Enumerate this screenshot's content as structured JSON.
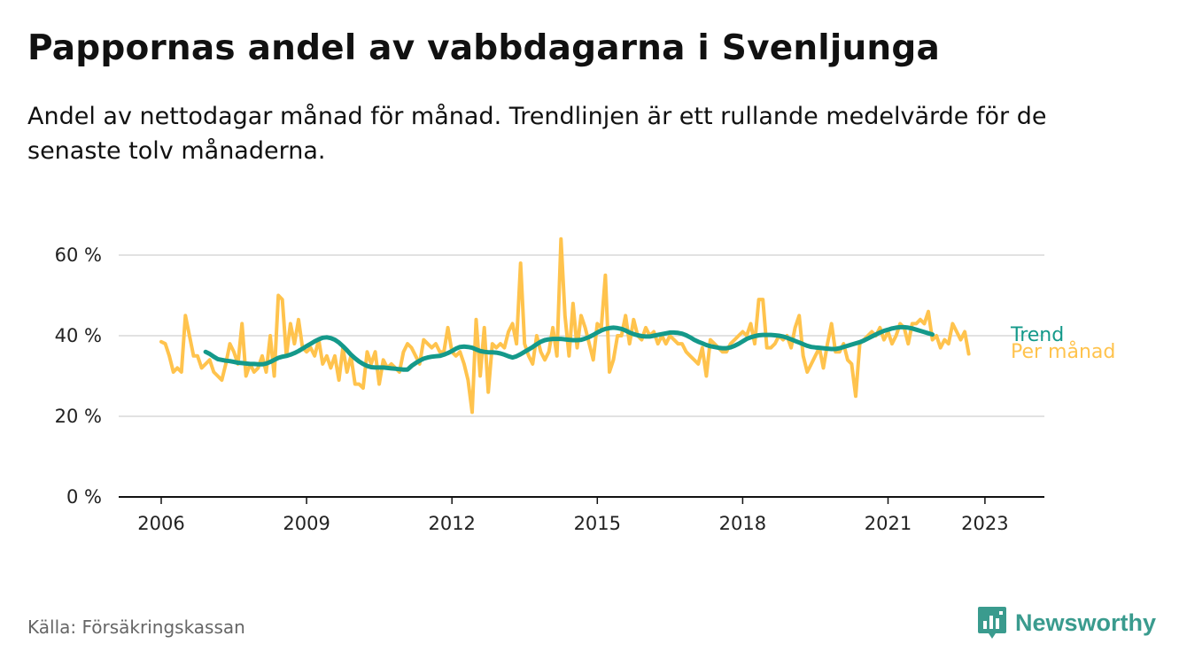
{
  "title": "Pappornas andel av vabbdagarna i Svenljunga",
  "subtitle": "Andel av nettodagar månad för månad. Trendlinjen är ett rullande medelvärde för de senaste tolv månaderna.",
  "source": "Källa: Försäkringskassan",
  "brand": {
    "name": "Newsworthy",
    "icon": "newsworthy-logo-icon"
  },
  "colors": {
    "monthly": "#ffc34d",
    "trend": "#14998a",
    "grid": "#d9d9d9",
    "axis": "#111111",
    "brand": "#3a9b8e"
  },
  "chart_data": {
    "type": "line",
    "x_unit": "decimal year",
    "xlim": [
      2006.0,
      2023.5
    ],
    "ylim": [
      0,
      60
    ],
    "y_ticks": [
      0,
      20,
      40,
      60
    ],
    "y_tick_labels": [
      "0 %",
      "20 %",
      "40 %",
      "60 %"
    ],
    "x_ticks": [
      2006,
      2009,
      2012,
      2015,
      2018,
      2021,
      2023
    ],
    "x_tick_labels": [
      "2006",
      "2009",
      "2012",
      "2015",
      "2018",
      "2021",
      "2023"
    ],
    "grid": true,
    "series": [
      {
        "name": "Per månad",
        "start": 2006.0,
        "step": 0.08333,
        "values": [
          38.5,
          38,
          35,
          31,
          32,
          31,
          45,
          40,
          35,
          35,
          32,
          33,
          34,
          31,
          30,
          29,
          33,
          38,
          36,
          33,
          43,
          30,
          33,
          31,
          32,
          35,
          31,
          40,
          30,
          50,
          49,
          35,
          43,
          38,
          44,
          37,
          36,
          37,
          35,
          39,
          33,
          35,
          32,
          35,
          29,
          37,
          31,
          35,
          28,
          28,
          27,
          36,
          33,
          36,
          28,
          34,
          32,
          33,
          32,
          31,
          36,
          38,
          37,
          35,
          33,
          39,
          38,
          37,
          38,
          36,
          36,
          42,
          36,
          35,
          36,
          33,
          29,
          21,
          44,
          30,
          42,
          26,
          38,
          37,
          38,
          37,
          41,
          43,
          38,
          58,
          38,
          35,
          33,
          40,
          36,
          34,
          36,
          42,
          35,
          64,
          45,
          35,
          48,
          37,
          45,
          42,
          38,
          34,
          43,
          42,
          55,
          31,
          34,
          40,
          40,
          45,
          38,
          44,
          40,
          39,
          42,
          40,
          41,
          38,
          40,
          38,
          40,
          39,
          38,
          38,
          36,
          35,
          34,
          33,
          37,
          30,
          39,
          38,
          37,
          36,
          36,
          38,
          39,
          40,
          41,
          40,
          43,
          38,
          49,
          49,
          37,
          37,
          38,
          40,
          39,
          40,
          37,
          42,
          45,
          35,
          31,
          33,
          35,
          37,
          32,
          38,
          43,
          36,
          36,
          38,
          34,
          33,
          25,
          38,
          39,
          40,
          41,
          40,
          42,
          39,
          41,
          38,
          40,
          43,
          42,
          38,
          43,
          43,
          44,
          43,
          46,
          39,
          40,
          37,
          39,
          38,
          43,
          41,
          39,
          41,
          35.5
        ]
      },
      {
        "name": "Trend",
        "start": 2006.9167,
        "step": 0.08333,
        "values": [
          36,
          35.5,
          34.8,
          34.2,
          34,
          33.8,
          33.7,
          33.5,
          33.3,
          33.2,
          33.1,
          33,
          33,
          32.9,
          32.9,
          33.1,
          33.5,
          34,
          34.5,
          34.8,
          35,
          35.3,
          35.7,
          36.2,
          36.8,
          37.4,
          38,
          38.6,
          39.1,
          39.5,
          39.6,
          39.4,
          39,
          38.3,
          37.4,
          36.4,
          35.3,
          34.4,
          33.6,
          33,
          32.5,
          32.2,
          32.1,
          32.1,
          32.1,
          32,
          31.9,
          31.8,
          31.7,
          31.6,
          31.6,
          32.5,
          33.2,
          33.8,
          34.3,
          34.6,
          34.8,
          34.9,
          35,
          35.3,
          35.7,
          36.2,
          36.8,
          37.2,
          37.3,
          37.2,
          37,
          36.6,
          36.2,
          36,
          35.9,
          35.9,
          35.8,
          35.6,
          35.3,
          34.9,
          34.6,
          34.9,
          35.4,
          36,
          36.6,
          37.2,
          37.9,
          38.5,
          38.9,
          39.1,
          39.2,
          39.2,
          39.2,
          39.1,
          39,
          38.9,
          38.9,
          39,
          39.3,
          39.7,
          40.2,
          40.8,
          41.3,
          41.7,
          41.9,
          42,
          41.9,
          41.7,
          41.3,
          40.8,
          40.4,
          40.1,
          39.9,
          39.8,
          39.8,
          40,
          40.2,
          40.4,
          40.6,
          40.8,
          40.8,
          40.7,
          40.5,
          40.1,
          39.6,
          39,
          38.5,
          38.1,
          37.7,
          37.4,
          37.2,
          37,
          36.9,
          36.9,
          37.1,
          37.5,
          38,
          38.6,
          39.2,
          39.6,
          39.9,
          40.1,
          40.2,
          40.2,
          40.2,
          40.1,
          40,
          39.8,
          39.5,
          39.1,
          38.7,
          38.3,
          37.9,
          37.5,
          37.2,
          37.1,
          37,
          36.9,
          36.8,
          36.7,
          36.7,
          36.9,
          37.2,
          37.5,
          37.8,
          38.1,
          38.4,
          38.8,
          39.3,
          39.8,
          40.3,
          40.8,
          41.2,
          41.5,
          41.8,
          42,
          42.1,
          42.1,
          42,
          41.8,
          41.5,
          41.2,
          40.9,
          40.6,
          40.3
        ]
      }
    ]
  }
}
